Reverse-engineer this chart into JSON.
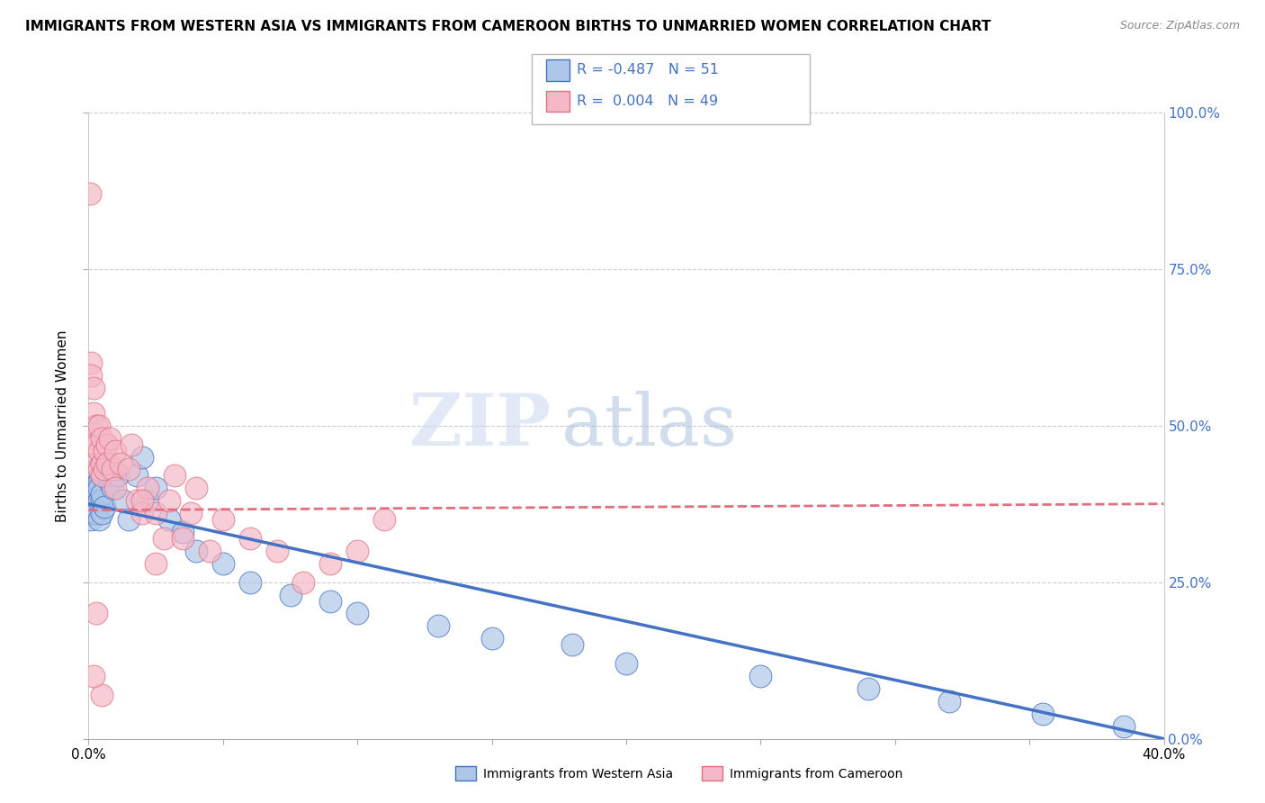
{
  "title": "IMMIGRANTS FROM WESTERN ASIA VS IMMIGRANTS FROM CAMEROON BIRTHS TO UNMARRIED WOMEN CORRELATION CHART",
  "source": "Source: ZipAtlas.com",
  "ylabel": "Births to Unmarried Women",
  "right_yticks": [
    "100.0%",
    "75.0%",
    "50.0%",
    "25.0%",
    "0.0%"
  ],
  "right_ytick_vals": [
    1.0,
    0.75,
    0.5,
    0.25,
    0.0
  ],
  "R_western": -0.487,
  "N_western": 51,
  "R_cameroon": 0.004,
  "N_cameroon": 49,
  "blue_color": "#aec6e8",
  "blue_line_color": "#4472c4",
  "pink_color": "#f4b8c8",
  "pink_line_color": "#e07080",
  "watermark_zip": "ZIP",
  "watermark_atlas": "atlas",
  "xlim": [
    0.0,
    0.4
  ],
  "ylim": [
    0.0,
    1.0
  ],
  "western_asia_x": [
    0.0005,
    0.001,
    0.001,
    0.001,
    0.002,
    0.002,
    0.002,
    0.002,
    0.003,
    0.003,
    0.003,
    0.003,
    0.004,
    0.004,
    0.004,
    0.004,
    0.005,
    0.005,
    0.005,
    0.005,
    0.005,
    0.006,
    0.006,
    0.007,
    0.008,
    0.009,
    0.01,
    0.011,
    0.013,
    0.015,
    0.018,
    0.02,
    0.022,
    0.025,
    0.03,
    0.035,
    0.04,
    0.05,
    0.06,
    0.075,
    0.09,
    0.1,
    0.13,
    0.15,
    0.18,
    0.2,
    0.25,
    0.29,
    0.32,
    0.355,
    0.385
  ],
  "western_asia_y": [
    0.38,
    0.4,
    0.37,
    0.35,
    0.39,
    0.36,
    0.42,
    0.38,
    0.4,
    0.37,
    0.43,
    0.36,
    0.41,
    0.38,
    0.35,
    0.4,
    0.44,
    0.38,
    0.36,
    0.42,
    0.39,
    0.43,
    0.37,
    0.44,
    0.41,
    0.4,
    0.43,
    0.42,
    0.38,
    0.35,
    0.42,
    0.45,
    0.38,
    0.4,
    0.35,
    0.33,
    0.3,
    0.28,
    0.25,
    0.23,
    0.22,
    0.2,
    0.18,
    0.16,
    0.15,
    0.12,
    0.1,
    0.08,
    0.06,
    0.04,
    0.02
  ],
  "cameroon_x": [
    0.0005,
    0.001,
    0.001,
    0.002,
    0.002,
    0.002,
    0.003,
    0.003,
    0.003,
    0.004,
    0.004,
    0.004,
    0.005,
    0.005,
    0.005,
    0.006,
    0.006,
    0.007,
    0.007,
    0.008,
    0.009,
    0.01,
    0.01,
    0.012,
    0.015,
    0.016,
    0.018,
    0.02,
    0.022,
    0.025,
    0.028,
    0.03,
    0.032,
    0.035,
    0.038,
    0.04,
    0.045,
    0.05,
    0.06,
    0.07,
    0.08,
    0.09,
    0.1,
    0.11,
    0.02,
    0.025,
    0.003,
    0.005,
    0.002
  ],
  "cameroon_y": [
    0.87,
    0.6,
    0.58,
    0.56,
    0.52,
    0.48,
    0.5,
    0.47,
    0.44,
    0.5,
    0.46,
    0.43,
    0.48,
    0.44,
    0.42,
    0.46,
    0.43,
    0.47,
    0.44,
    0.48,
    0.43,
    0.46,
    0.4,
    0.44,
    0.43,
    0.47,
    0.38,
    0.36,
    0.4,
    0.36,
    0.32,
    0.38,
    0.42,
    0.32,
    0.36,
    0.4,
    0.3,
    0.35,
    0.32,
    0.3,
    0.25,
    0.28,
    0.3,
    0.35,
    0.38,
    0.28,
    0.2,
    0.07,
    0.1
  ],
  "blue_trend_x0": 0.0,
  "blue_trend_x1": 0.4,
  "blue_trend_y0": 0.375,
  "blue_trend_y1": 0.0,
  "pink_trend_y0": 0.365,
  "pink_trend_y1": 0.375
}
